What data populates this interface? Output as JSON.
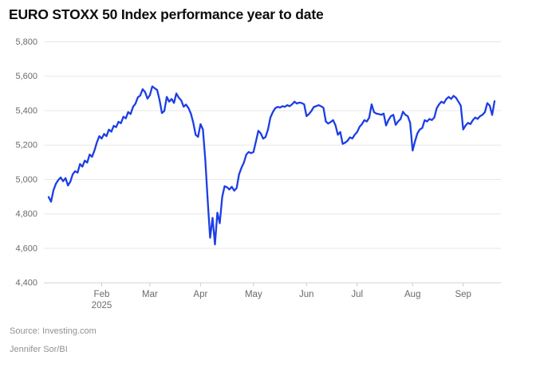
{
  "title": "EURO STOXX 50 Index performance year to date",
  "footer": {
    "source_line": "Source: Investing.com",
    "byline": "Jennifer Sor/BI"
  },
  "chart_data": {
    "type": "line",
    "title": "EURO STOXX 50 Index performance year to date",
    "series_name": "EURO STOXX 50",
    "line_color": "#1c3ee4",
    "grid": true,
    "legend": false,
    "ylim": [
      4400,
      5800
    ],
    "y_tick_values": [
      5800,
      5600,
      5400,
      5200,
      5000,
      4800,
      4600,
      4400
    ],
    "y_tick_labels": [
      "5,800",
      "5,600",
      "5,400",
      "5,200",
      "5,000",
      "4,800",
      "4,600",
      "4,400"
    ],
    "x_ticks": [
      {
        "label": "Feb",
        "sublabel": "2025",
        "index": 22
      },
      {
        "label": "Mar",
        "index": 42
      },
      {
        "label": "Apr",
        "index": 63
      },
      {
        "label": "May",
        "index": 85
      },
      {
        "label": "Jun",
        "index": 107
      },
      {
        "label": "Jul",
        "index": 128
      },
      {
        "label": "Aug",
        "index": 151
      },
      {
        "label": "Sep",
        "index": 172
      }
    ],
    "values": [
      4898,
      4871,
      4937,
      4976,
      4997,
      5012,
      4990,
      5008,
      4965,
      4988,
      5031,
      5048,
      5040,
      5090,
      5075,
      5110,
      5098,
      5145,
      5132,
      5168,
      5215,
      5252,
      5238,
      5265,
      5252,
      5290,
      5278,
      5312,
      5304,
      5335,
      5327,
      5365,
      5355,
      5392,
      5380,
      5422,
      5440,
      5477,
      5488,
      5525,
      5508,
      5470,
      5490,
      5541,
      5530,
      5520,
      5463,
      5386,
      5398,
      5480,
      5452,
      5468,
      5445,
      5500,
      5475,
      5460,
      5423,
      5435,
      5415,
      5383,
      5330,
      5260,
      5248,
      5322,
      5291,
      5113,
      4878,
      4662,
      4777,
      4623,
      4807,
      4746,
      4899,
      4961,
      4955,
      4942,
      4958,
      4935,
      4951,
      5030,
      5068,
      5099,
      5145,
      5160,
      5153,
      5160,
      5222,
      5283,
      5268,
      5237,
      5247,
      5291,
      5360,
      5391,
      5414,
      5422,
      5418,
      5426,
      5422,
      5432,
      5426,
      5437,
      5452,
      5441,
      5447,
      5444,
      5437,
      5368,
      5380,
      5398,
      5421,
      5426,
      5432,
      5426,
      5417,
      5337,
      5325,
      5334,
      5345,
      5315,
      5260,
      5276,
      5207,
      5214,
      5225,
      5245,
      5238,
      5260,
      5276,
      5306,
      5322,
      5345,
      5337,
      5360,
      5437,
      5391,
      5383,
      5380,
      5376,
      5383,
      5314,
      5345,
      5368,
      5376,
      5317,
      5337,
      5352,
      5394,
      5376,
      5368,
      5329,
      5168,
      5222,
      5268,
      5291,
      5299,
      5345,
      5337,
      5352,
      5345,
      5360,
      5414,
      5437,
      5452,
      5444,
      5468,
      5480,
      5468,
      5486,
      5475,
      5452,
      5429,
      5291,
      5314,
      5329,
      5322,
      5345,
      5360,
      5352,
      5368,
      5376,
      5391,
      5444,
      5429,
      5375,
      5455
    ]
  }
}
